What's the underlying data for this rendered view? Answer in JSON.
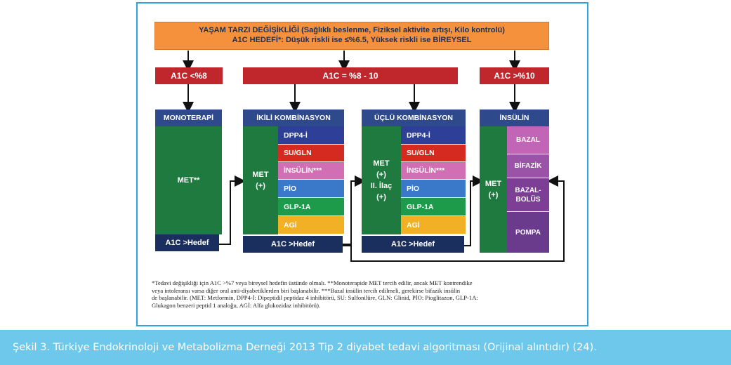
{
  "lifestyle": {
    "line1": "YAŞAM TARZI DEĞİŞİKLİĞİ (Sağlıklı beslenme, Fiziksel aktivite artışı, Kilo kontrolü)",
    "line2": "A1C HEDEFİ*: Düşük riskli ise ≤%6.5, Yüksek riskli ise BİREYSEL"
  },
  "ranges": {
    "low": "A1C <%8",
    "mid": "A1C = %8 - 10",
    "high": "A1C >%10"
  },
  "mono": {
    "title": "MONOTERAPİ",
    "body": "MET**",
    "footer": "A1C >Hedef"
  },
  "dual": {
    "title": "İKİLİ KOMBİNASYON",
    "body_l1": "MET",
    "body_l2": "(+)",
    "items": [
      "DPP4-İ",
      "SU/GLN",
      "İNSÜLİN***",
      "PİO",
      "GLP-1A",
      "AGİ"
    ],
    "footer": "A1C >Hedef"
  },
  "triple": {
    "title": "ÜÇLÜ KOMBİNASYON",
    "body_l1": "MET",
    "body_l2": "(+)",
    "body_l3": "II. İlaç",
    "body_l4": "(+)",
    "items": [
      "DPP4-İ",
      "SU/GLN",
      "İNSÜLİN***",
      "PİO",
      "GLP-1A",
      "AGİ"
    ],
    "footer": "A1C >Hedef"
  },
  "insulin": {
    "title": "İNSÜLİN",
    "body_l1": "MET",
    "body_l2": "(+)",
    "items": [
      "BAZAL",
      "BİFAZİK",
      "BAZAL-",
      "BOLÜS",
      "POMPA"
    ]
  },
  "colors": {
    "dpp4": "#2d3f96",
    "su": "#d42a20",
    "insulin": "#d26fb4",
    "pio": "#3a78c9",
    "glp": "#1e9a4b",
    "agi": "#f2b125",
    "bazal": "#c265b7",
    "bifazik": "#9a53a7",
    "bazalbolus": "#7c3f95",
    "pompa": "#6a3b8c"
  },
  "footnote": {
    "l1": "*Tedavi değişikliği için A1C >%7 veya bireysel hedefin üstünde olmalı. **Monoterapide MET tercih edilir, ancak MET kontrendike",
    "l2": "veya intoleransı varsa diğer oral anti-diyabetiklerden biri başlanabilir. ***Bazal insülin tercih edilmeli, gerekirse bifazik insülin",
    "l3": "de başlanabilir. (MET: Metformin, DPP4-İ: Dipeptidil peptidaz 4 inhibitörü, SU: Sulfonilüre, GLN: Glinid, PİO: Pioglitazon, GLP-1A:",
    "l4": "Glukagon benzeri peptid 1 analoğu, AGİ: Alfa glukozidaz inhibitörü)."
  },
  "caption": "Şekil 3. Türkiye Endokrinoloji ve Metabolizma Derneği 2013 Tip 2 diyabet tedavi algoritması (Orijinal alıntıdır) (24)."
}
